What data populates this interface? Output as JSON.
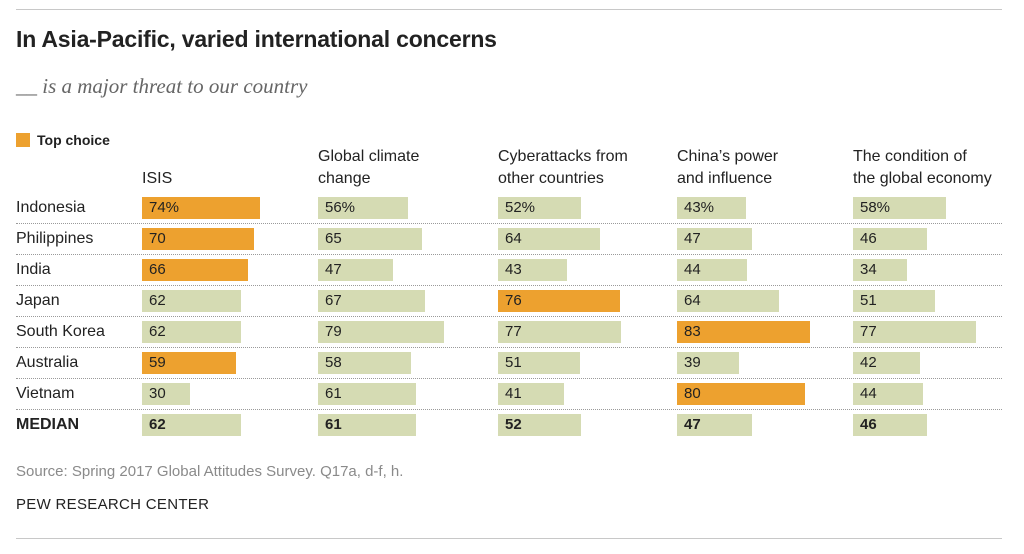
{
  "title": "In Asia-Pacific, varied international concerns",
  "subtitle": "__ is a major threat to our country",
  "legend": {
    "label": "Top choice"
  },
  "colors": {
    "top": "#eda12f",
    "other": "#d5dbb3"
  },
  "source": "Source: Spring 2017 Global Attitudes Survey. Q17a, d-f, h.",
  "credit": "PEW RESEARCH CENTER",
  "chart_data": {
    "type": "bar",
    "orientation": "horizontal",
    "columns": [
      "ISIS",
      "Global climate\nchange",
      "Cyberattacks from\nother countries",
      "China’s power\nand influence",
      "The condition of\nthe global economy"
    ],
    "rows": [
      {
        "label": "Indonesia",
        "values": [
          74,
          56,
          52,
          43,
          58
        ],
        "display": [
          "74%",
          "56%",
          "52%",
          "43%",
          "58%"
        ],
        "top": [
          true,
          false,
          false,
          false,
          false
        ]
      },
      {
        "label": "Philippines",
        "values": [
          70,
          65,
          64,
          47,
          46
        ],
        "display": [
          "70",
          "65",
          "64",
          "47",
          "46"
        ],
        "top": [
          true,
          false,
          false,
          false,
          false
        ]
      },
      {
        "label": "India",
        "values": [
          66,
          47,
          43,
          44,
          34
        ],
        "display": [
          "66",
          "47",
          "43",
          "44",
          "34"
        ],
        "top": [
          true,
          false,
          false,
          false,
          false
        ]
      },
      {
        "label": "Japan",
        "values": [
          62,
          67,
          76,
          64,
          51
        ],
        "display": [
          "62",
          "67",
          "76",
          "64",
          "51"
        ],
        "top": [
          false,
          false,
          true,
          false,
          false
        ]
      },
      {
        "label": "South Korea",
        "values": [
          62,
          79,
          77,
          83,
          77
        ],
        "display": [
          "62",
          "79",
          "77",
          "83",
          "77"
        ],
        "top": [
          false,
          false,
          false,
          true,
          false
        ]
      },
      {
        "label": "Australia",
        "values": [
          59,
          58,
          51,
          39,
          42
        ],
        "display": [
          "59",
          "58",
          "51",
          "39",
          "42"
        ],
        "top": [
          true,
          false,
          false,
          false,
          false
        ]
      },
      {
        "label": "Vietnam",
        "values": [
          30,
          61,
          41,
          80,
          44
        ],
        "display": [
          "30",
          "61",
          "41",
          "80",
          "44"
        ],
        "top": [
          false,
          false,
          false,
          true,
          false
        ]
      },
      {
        "label": "MEDIAN",
        "values": [
          62,
          61,
          52,
          47,
          46
        ],
        "display": [
          "62",
          "61",
          "52",
          "47",
          "46"
        ],
        "top": [
          false,
          false,
          false,
          false,
          false
        ],
        "median": true
      }
    ],
    "unit": "%",
    "xlim": [
      0,
      100
    ]
  }
}
